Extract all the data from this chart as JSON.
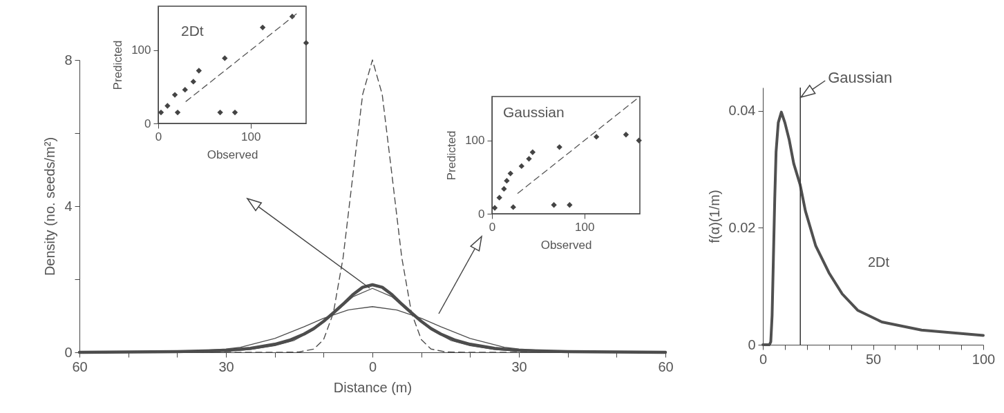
{
  "chart_data": [
    {
      "type": "line",
      "xlabel": "Distance (m)",
      "ylabel": "Density (no. seeds/m²)",
      "xlim": [
        -60,
        60
      ],
      "ylim": [
        0,
        8
      ],
      "xticks": [
        {
          "value": -60,
          "label": "60"
        },
        {
          "value": -50,
          "label": null
        },
        {
          "value": -40,
          "label": null
        },
        {
          "value": -30,
          "label": "30"
        },
        {
          "value": -20,
          "label": null
        },
        {
          "value": -10,
          "label": null
        },
        0,
        {
          "value": 10,
          "label": null
        },
        {
          "value": 20,
          "label": null
        },
        30,
        {
          "value": 40,
          "label": null
        },
        {
          "value": 50,
          "label": null
        },
        60
      ],
      "yticks": [
        0,
        {
          "value": 2,
          "label": null
        },
        4,
        {
          "value": 6,
          "label": null
        },
        8
      ],
      "series": [
        {
          "color": "#4d4d4d",
          "line_style": "dashed",
          "x": [
            -60,
            -20,
            -15,
            -12,
            -10,
            -8,
            -6,
            -4,
            -2,
            0,
            2,
            4,
            6,
            8,
            10,
            12,
            15,
            20,
            60
          ],
          "values": [
            0,
            0,
            0.01,
            0.09,
            0.35,
            1.08,
            2.6,
            4.85,
            7.06,
            8,
            7.06,
            4.85,
            2.6,
            1.08,
            0.35,
            0.09,
            0.01,
            0,
            0
          ]
        },
        {
          "color": "#4d4d4d",
          "x": [
            -60,
            -40,
            -30,
            -25,
            -20,
            -17,
            -14,
            -12,
            -10,
            -8,
            -6,
            -4,
            -2,
            0,
            2,
            4,
            6,
            8,
            10,
            12,
            14,
            17,
            20,
            25,
            30,
            40,
            60
          ],
          "values": [
            0,
            0.02,
            0.05,
            0.11,
            0.22,
            0.33,
            0.5,
            0.65,
            0.85,
            1.08,
            1.32,
            1.58,
            1.78,
            1.85,
            1.78,
            1.58,
            1.32,
            1.08,
            0.85,
            0.65,
            0.5,
            0.33,
            0.22,
            0.11,
            0.05,
            0.02,
            0
          ]
        },
        {
          "color": "#4d4d4d",
          "x": [
            -60,
            -40,
            -30,
            -27,
            -20,
            -14,
            -10,
            -5,
            0,
            5,
            10,
            14,
            20,
            27,
            30,
            40,
            60
          ],
          "values": [
            0,
            0.01,
            0.09,
            0.14,
            0.38,
            0.7,
            0.93,
            1.16,
            1.25,
            1.16,
            0.93,
            0.7,
            0.38,
            0.14,
            0.09,
            0.01,
            0
          ]
        },
        {
          "color": "#4d4d4d",
          "x": [
            -60,
            -40,
            -30,
            -25,
            -20,
            -16,
            -12,
            -8,
            -4,
            0,
            4,
            8,
            12,
            16,
            20,
            25,
            30,
            40,
            60
          ],
          "values": [
            0,
            0.01,
            0.03,
            0.08,
            0.18,
            0.33,
            0.62,
            1.05,
            1.52,
            1.75,
            1.52,
            1.05,
            0.62,
            0.33,
            0.18,
            0.08,
            0.03,
            0.01,
            0
          ]
        }
      ]
    },
    {
      "type": "scatter",
      "title": "2Dt",
      "xlabel": "Observed",
      "ylabel": "Predicted",
      "xlim": [
        0,
        160
      ],
      "ylim": [
        0,
        160
      ],
      "xticks": [
        0,
        100
      ],
      "yticks": [
        0,
        100
      ],
      "series": [
        {
          "color": "#444444",
          "marker": "diamond",
          "x": [
            145,
            113,
            160,
            72,
            44,
            38,
            29,
            18,
            21,
            67,
            83,
            3,
            10
          ],
          "values": [
            146,
            131,
            110,
            89,
            72,
            57,
            46,
            39,
            15,
            15,
            15,
            15,
            24
          ]
        },
        {
          "type": "line",
          "line_style": "dashed",
          "color": "#555555",
          "x": [
            30,
            150
          ],
          "values": [
            30,
            150
          ]
        }
      ]
    },
    {
      "type": "scatter",
      "title": "Gaussian",
      "xlabel": "Observed",
      "ylabel": "Predicted",
      "xlim": [
        0,
        160
      ],
      "ylim": [
        0,
        160
      ],
      "xticks": [
        0,
        100
      ],
      "yticks": [
        0,
        100
      ],
      "series": [
        {
          "color": "#444444",
          "marker": "diamond",
          "x": [
            159,
            145,
            113,
            73,
            44,
            40,
            32,
            20,
            16,
            13,
            8,
            3,
            23,
            67,
            84
          ],
          "values": [
            100,
            108,
            105,
            91,
            84,
            75,
            65,
            55,
            45,
            34,
            22,
            8,
            9,
            12,
            12
          ]
        },
        {
          "type": "line",
          "line_style": "dashed",
          "color": "#555555",
          "x": [
            28,
            158
          ],
          "values": [
            28,
            158
          ]
        }
      ]
    },
    {
      "type": "line",
      "ylabel": "f(α)(1/m)",
      "xlim": [
        0,
        100
      ],
      "ylim": [
        0,
        0.044
      ],
      "xticks": [
        0,
        {
          "value": 10,
          "label": null
        },
        {
          "value": 20,
          "label": null
        },
        {
          "value": 30,
          "label": null
        },
        {
          "value": 40,
          "label": null
        },
        50,
        {
          "value": 60,
          "label": null
        },
        {
          "value": 70,
          "label": null
        },
        {
          "value": 80,
          "label": null
        },
        {
          "value": 90,
          "label": null
        },
        100
      ],
      "yticks": [
        0,
        0.02,
        0.04
      ],
      "series": [
        {
          "name": "2Dt",
          "color": "#505050",
          "x": [
            0,
            3,
            3.6,
            4.2,
            4.8,
            5.4,
            6,
            7,
            8.4,
            10,
            12,
            14,
            16.9,
            19.3,
            24,
            30,
            36,
            43,
            54,
            72,
            100
          ],
          "values": [
            0,
            0,
            0.0005,
            0.005,
            0.015,
            0.025,
            0.033,
            0.038,
            0.0398,
            0.038,
            0.035,
            0.031,
            0.0274,
            0.0229,
            0.0169,
            0.0123,
            0.0087,
            0.0059,
            0.0039,
            0.0025,
            0.0016
          ]
        }
      ],
      "ref_lines": [
        {
          "axis": "x",
          "value": 17,
          "label": "Gaussian",
          "color": "#333333"
        }
      ]
    }
  ]
}
